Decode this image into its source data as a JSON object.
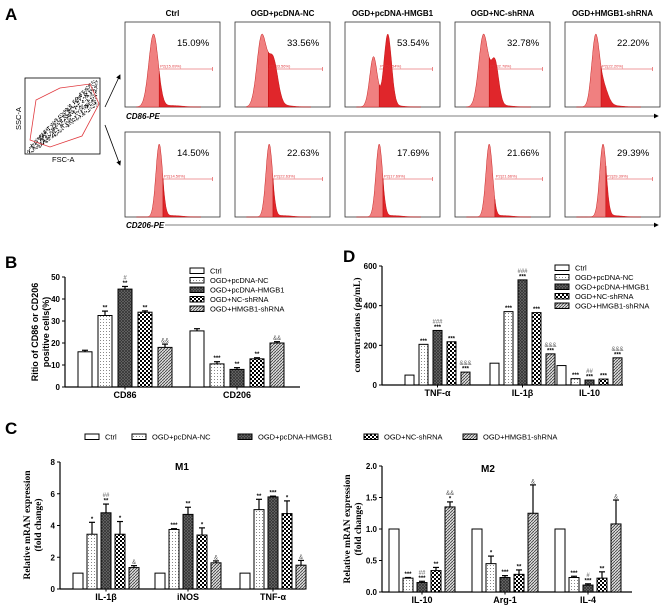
{
  "colors": {
    "flow_fill_light": "#f08080",
    "flow_fill_dark": "#e0262b",
    "gate": "#e0393e",
    "bar_stroke": "#000000"
  },
  "groups": [
    {
      "name": "Ctrl",
      "pattern": "white"
    },
    {
      "name": "OGD+pcDNA-NC",
      "pattern": "dots"
    },
    {
      "name": "OGD+pcDNA-HMGB1",
      "pattern": "crosshatch-dark"
    },
    {
      "name": "OGD+NC-shRNA",
      "pattern": "checker"
    },
    {
      "name": "OGD+HMGB1-shRNA",
      "pattern": "diagonal-hatch"
    }
  ],
  "panel_a": {
    "letter": "A",
    "scatter": {
      "x_label": "FSC-A",
      "y_label": "SSC-A"
    },
    "rows": [
      {
        "marker": "CD86-PE",
        "percentages": [
          "15.09%",
          "33.56%",
          "53.54%",
          "32.78%",
          "22.20%"
        ],
        "gates": [
          "P2(15.09%)",
          "P2(33.56%)",
          "P2(53.54%)",
          "P2(32.78%)",
          "P2(22.20%)"
        ]
      },
      {
        "marker": "CD206-PE",
        "percentages": [
          "14.50%",
          "22.63%",
          "17.69%",
          "21.66%",
          "29.39%"
        ],
        "gates": [
          "P2(14.50%)",
          "P2(22.63%)",
          "P2(17.69%)",
          "P2(21.66%)",
          "P2(29.39%)"
        ]
      }
    ]
  },
  "chart_data": [
    {
      "panel": "B",
      "type": "bar",
      "ylabel": [
        "Ritio of CD86 or CD206",
        "positive cells(%)"
      ],
      "ylim": [
        0,
        50
      ],
      "yticks": [
        0,
        10,
        20,
        30,
        40,
        50
      ],
      "categories": [
        "CD86",
        "CD206"
      ],
      "legend": "top-right",
      "series": [
        {
          "name": "Ctrl",
          "values": [
            16,
            25.5
          ],
          "errors": [
            0.7,
            1.0
          ],
          "sig": [
            [],
            []
          ]
        },
        {
          "name": "OGD+pcDNA-NC",
          "values": [
            32.5,
            10.5
          ],
          "errors": [
            2.0,
            1.0
          ],
          "sig": [
            [
              "**"
            ],
            [
              "***"
            ]
          ]
        },
        {
          "name": "OGD+pcDNA-HMGB1",
          "values": [
            44.5,
            8
          ],
          "errors": [
            1.2,
            0.8
          ],
          "sig": [
            [
              "#",
              "**"
            ],
            [
              "**"
            ]
          ]
        },
        {
          "name": "OGD+NC-shRNA",
          "values": [
            34,
            12.8
          ],
          "errors": [
            0.6,
            0.5
          ],
          "sig": [
            [
              "**"
            ],
            [
              "**"
            ]
          ]
        },
        {
          "name": "OGD+HMGB1-shRNA",
          "values": [
            18,
            20
          ],
          "errors": [
            1.5,
            0.6
          ],
          "sig": [
            [
              "&&"
            ],
            [
              "&&"
            ]
          ]
        }
      ]
    },
    {
      "panel": "D",
      "type": "bar",
      "ylabel": [
        "concentrations (ρg/mL)"
      ],
      "ylim": [
        0,
        600
      ],
      "yticks": [
        0,
        200,
        400,
        600
      ],
      "categories": [
        "TNF-α",
        "IL-1β",
        "IL-10"
      ],
      "legend": "top-right",
      "series": [
        {
          "name": "Ctrl",
          "values": [
            50,
            110,
            98
          ],
          "errors": [
            0,
            0,
            0
          ],
          "sig": [
            [],
            [],
            []
          ]
        },
        {
          "name": "OGD+pcDNA-NC",
          "values": [
            205,
            370,
            32
          ],
          "errors": [
            0,
            0,
            0
          ],
          "sig": [
            [
              "***"
            ],
            [
              "***"
            ],
            [
              "***"
            ]
          ]
        },
        {
          "name": "OGD+pcDNA-HMGB1",
          "values": [
            275,
            530,
            25
          ],
          "errors": [
            0,
            0,
            0
          ],
          "sig": [
            [
              "###",
              "***"
            ],
            [
              "###",
              "***"
            ],
            [
              "##",
              "***"
            ]
          ]
        },
        {
          "name": "OGD+NC-shRNA",
          "values": [
            218,
            365,
            30
          ],
          "errors": [
            0,
            0,
            0
          ],
          "sig": [
            [
              "***"
            ],
            [
              "***"
            ],
            [
              "***"
            ]
          ]
        },
        {
          "name": "OGD+HMGB1-shRNA",
          "values": [
            65,
            157,
            137
          ],
          "errors": [
            0,
            0,
            0
          ],
          "sig": [
            [
              "&&&",
              "***"
            ],
            [
              "&&&",
              "***"
            ],
            [
              "&&&",
              "***"
            ]
          ]
        }
      ]
    },
    {
      "panel": "C",
      "type": "bar",
      "title": "M1",
      "ylabel": [
        "Relative mRAN expression",
        "(fold change)"
      ],
      "ylim": [
        0,
        8
      ],
      "yticks": [
        0,
        2,
        4,
        6,
        8
      ],
      "categories": [
        "IL-1β",
        "iNOS",
        "TNF-α"
      ],
      "legend": "top",
      "series": [
        {
          "name": "Ctrl",
          "values": [
            1,
            1,
            1
          ],
          "errors": [
            0,
            0,
            0
          ],
          "sig": [
            [],
            [],
            []
          ]
        },
        {
          "name": "OGD+pcDNA-NC",
          "values": [
            3.45,
            3.75,
            5.0
          ],
          "errors": [
            0.75,
            0.05,
            0.65
          ],
          "sig": [
            [
              "*"
            ],
            [
              "***"
            ],
            [
              "**"
            ]
          ]
        },
        {
          "name": "OGD+pcDNA-HMGB1",
          "values": [
            4.8,
            4.7,
            5.8
          ],
          "errors": [
            0.55,
            0.45,
            0.05
          ],
          "sig": [
            [
              "##",
              "**"
            ],
            [
              "**"
            ],
            [
              "***"
            ]
          ]
        },
        {
          "name": "OGD+NC-shRNA",
          "values": [
            3.45,
            3.4,
            4.75
          ],
          "errors": [
            0.8,
            0.45,
            0.8
          ],
          "sig": [
            [
              "*"
            ],
            [
              "*"
            ],
            [
              "*"
            ]
          ]
        },
        {
          "name": "OGD+HMGB1-shRNA",
          "values": [
            1.35,
            1.65,
            1.5
          ],
          "errors": [
            0.12,
            0.12,
            0.3
          ],
          "sig": [
            [
              "&"
            ],
            [
              "&"
            ],
            [
              "&"
            ]
          ]
        }
      ]
    },
    {
      "panel": "C",
      "type": "bar",
      "title": "M2",
      "ylabel": [
        "Relative mRAN expression",
        "(fold change)"
      ],
      "ylim": [
        0,
        2.0
      ],
      "yticks": [
        "0.0",
        "0.5",
        "1.0",
        "1.5",
        "2.0"
      ],
      "categories": [
        "IL-10",
        "Arg-1",
        "IL-4"
      ],
      "series": [
        {
          "name": "Ctrl",
          "values": [
            1,
            1,
            1
          ],
          "errors": [
            0,
            0,
            0
          ],
          "sig": [
            [],
            [],
            []
          ]
        },
        {
          "name": "OGD+pcDNA-NC",
          "values": [
            0.22,
            0.45,
            0.23
          ],
          "errors": [
            0.01,
            0.12,
            0.02
          ],
          "sig": [
            [
              "***"
            ],
            [
              "*"
            ],
            [
              "***"
            ]
          ]
        },
        {
          "name": "OGD+pcDNA-HMGB1",
          "values": [
            0.15,
            0.23,
            0.11
          ],
          "errors": [
            0.02,
            0.03,
            0.02
          ],
          "sig": [
            [
              "##",
              "***"
            ],
            [
              "***"
            ],
            [
              "#",
              "***"
            ]
          ]
        },
        {
          "name": "OGD+NC-shRNA",
          "values": [
            0.34,
            0.28,
            0.22
          ],
          "errors": [
            0.05,
            0.07,
            0.1
          ],
          "sig": [
            [
              "**"
            ],
            [
              "**"
            ],
            [
              "**"
            ]
          ]
        },
        {
          "name": "OGD+HMGB1-shRNA",
          "values": [
            1.35,
            1.25,
            1.08
          ],
          "errors": [
            0.08,
            0.45,
            0.38
          ],
          "sig": [
            [
              "&&",
              "*"
            ],
            [
              "&"
            ],
            [
              "&"
            ]
          ]
        }
      ]
    }
  ],
  "labels": {
    "b": "B",
    "c": "C",
    "d": "D"
  }
}
